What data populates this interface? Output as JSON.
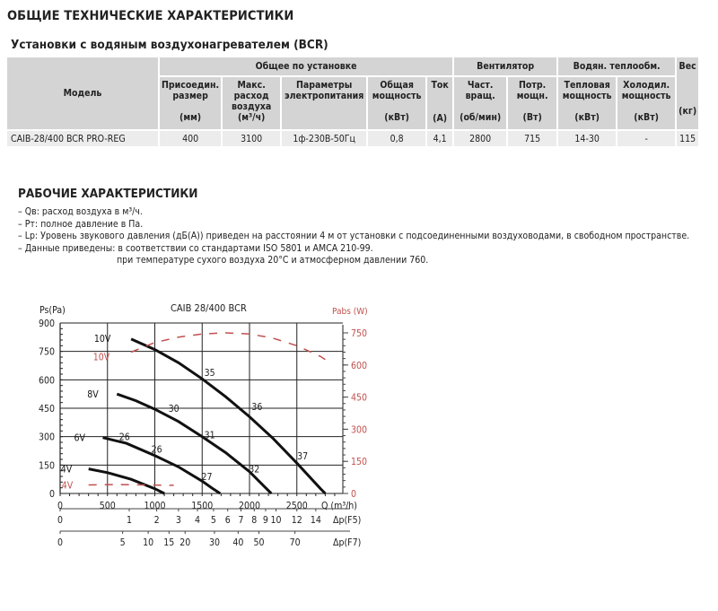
{
  "title": "ОБЩИЕ ТЕХНИЧЕСКИЕ ХАРАКТЕРИСТИКИ",
  "subtitle": "Установки с водяным воздухонагревателем (BCR)",
  "table": {
    "model_header": "Модель",
    "groups": {
      "general": "Общее по установке",
      "fan": "Вентилятор",
      "water": "Водян. теплообм.",
      "weight": "Вес"
    },
    "columns": [
      {
        "name": "Присоедин. размер",
        "unit": "(мм)"
      },
      {
        "name": "Макс. расход воздуха",
        "unit": "(м³/ч)"
      },
      {
        "name": "Параметры электропитания",
        "unit": ""
      },
      {
        "name": "Общая мощность",
        "unit": "(кВт)"
      },
      {
        "name": "Ток",
        "unit": "(А)"
      },
      {
        "name": "Част. вращ.",
        "unit": "(об/мин)"
      },
      {
        "name": "Потр. мощн.",
        "unit": "(Вт)"
      },
      {
        "name": "Тепловая мощность",
        "unit": "(кВт)"
      },
      {
        "name": "Холодил. мощность",
        "unit": "(кВт)"
      },
      {
        "name": "",
        "unit": "(кг)"
      }
    ],
    "row": {
      "model": "CAIB-28/400 BCR PRO-REG",
      "values": [
        "400",
        "3100",
        "1ф-230В-50Гц",
        "0,8",
        "4,1",
        "2800",
        "715",
        "14-30",
        "-",
        "115"
      ]
    }
  },
  "perf_title": "РАБОЧИЕ ХАРАКТЕРИСТИКИ",
  "notes": [
    "– Qв: расход воздуха в м³/ч.",
    "– Pт: полное давление в Па.",
    "– Lp: Уровень звукового давления (дБ(А)) приведен на расстоянии 4 м от установки с подсоединенными воздуховодами, в свободном пространстве.",
    "– Данные приведены:  в соответствии со стандартами ISO 5801 и AMCA 210-99.",
    "при температуре сухого воздуха 20°С и атмосферном давлении 760."
  ],
  "chart_data": {
    "type": "line",
    "title": "CAIB 28/400 BCR",
    "xlabel": "Q (m³/h)",
    "ylabel": "Ps(Pa)",
    "y2label": "Pabs (W)",
    "xlim": [
      0,
      3000
    ],
    "ylim": [
      0,
      900
    ],
    "y2lim": [
      0,
      800
    ],
    "grid": true,
    "x_ticks": [
      0,
      500,
      1000,
      1500,
      2000,
      2500
    ],
    "y_ticks": [
      0,
      150,
      300,
      450,
      600,
      750,
      900
    ],
    "y2_ticks": [
      0,
      150,
      300,
      450,
      600,
      750
    ],
    "series": [
      {
        "name": "10V",
        "axis": "left",
        "style": "solid",
        "color": "#111111",
        "x": [
          750,
          1000,
          1250,
          1500,
          1750,
          2000,
          2250,
          2500,
          2750,
          2800
        ],
        "y": [
          815,
          760,
          690,
          605,
          510,
          405,
          290,
          160,
          25,
          0
        ]
      },
      {
        "name": "8V",
        "axis": "left",
        "style": "solid",
        "color": "#111111",
        "x": [
          600,
          800,
          1000,
          1250,
          1500,
          1750,
          2000,
          2150,
          2230
        ],
        "y": [
          525,
          490,
          445,
          380,
          300,
          215,
          115,
          40,
          0
        ]
      },
      {
        "name": "6V",
        "axis": "left",
        "style": "solid",
        "color": "#111111",
        "x": [
          450,
          700,
          1000,
          1250,
          1500,
          1600,
          1690
        ],
        "y": [
          295,
          265,
          200,
          140,
          65,
          30,
          0
        ]
      },
      {
        "name": "4V",
        "axis": "left",
        "style": "solid",
        "color": "#111111",
        "x": [
          300,
          500,
          750,
          1000,
          1100
        ],
        "y": [
          130,
          110,
          75,
          25,
          0
        ]
      },
      {
        "name": "10V Pabs",
        "axis": "right",
        "style": "dashed",
        "color": "#c0504d",
        "x": [
          750,
          1000,
          1250,
          1500,
          1750,
          2000,
          2250,
          2500,
          2750,
          2800
        ],
        "y": [
          660,
          705,
          730,
          745,
          750,
          745,
          725,
          690,
          640,
          625
        ]
      },
      {
        "name": "4V Pabs",
        "axis": "right",
        "style": "dashed",
        "color": "#c0504d",
        "x": [
          300,
          600,
          900,
          1200
        ],
        "y": [
          40,
          42,
          40,
          38
        ]
      }
    ],
    "annotations": {
      "sound_levels": [
        {
          "label": "35",
          "x": 1580,
          "y": 640
        },
        {
          "label": "36",
          "x": 2080,
          "y": 460
        },
        {
          "label": "37",
          "x": 2560,
          "y": 200
        },
        {
          "label": "30",
          "x": 1200,
          "y": 450
        },
        {
          "label": "31",
          "x": 1580,
          "y": 310
        },
        {
          "label": "32",
          "x": 2050,
          "y": 130
        },
        {
          "label": "26",
          "x": 680,
          "y": 300
        },
        {
          "label": "26",
          "x": 1020,
          "y": 235
        },
        {
          "label": "27",
          "x": 1550,
          "y": 90
        }
      ],
      "curve_labels": [
        {
          "label": "10V",
          "x": 560,
          "y": 820,
          "color": "#111111"
        },
        {
          "label": "8V",
          "x": 460,
          "y": 525,
          "color": "#111111"
        },
        {
          "label": "6V",
          "x": 320,
          "y": 295,
          "color": "#111111"
        },
        {
          "label": "4V",
          "x": 180,
          "y": 130,
          "color": "#111111"
        },
        {
          "label": "10V",
          "x": 550,
          "y": 640,
          "color": "#c0504d"
        },
        {
          "label": "4V",
          "x": 190,
          "y": 40,
          "color": "#c0504d"
        }
      ]
    },
    "secondary_x_axes": [
      {
        "label": "Δp(F5)",
        "ticks": [
          {
            "v": "0",
            "q": 0
          },
          {
            "v": "1",
            "q": 730
          },
          {
            "v": "2",
            "q": 1020
          },
          {
            "v": "3",
            "q": 1250
          },
          {
            "v": "4",
            "q": 1450
          },
          {
            "v": "5",
            "q": 1620
          },
          {
            "v": "6",
            "q": 1770
          },
          {
            "v": "7",
            "q": 1910
          },
          {
            "v": "8",
            "q": 2050
          },
          {
            "v": "9",
            "q": 2170
          },
          {
            "v": "10",
            "q": 2280
          },
          {
            "v": "12",
            "q": 2500
          },
          {
            "v": "14",
            "q": 2700
          }
        ]
      },
      {
        "label": "Δp(F7)",
        "ticks": [
          {
            "v": "0",
            "q": 0
          },
          {
            "v": "5",
            "q": 660
          },
          {
            "v": "10",
            "q": 930
          },
          {
            "v": "15",
            "q": 1150
          },
          {
            "v": "20",
            "q": 1320
          },
          {
            "v": "30",
            "q": 1630
          },
          {
            "v": "40",
            "q": 1880
          },
          {
            "v": "50",
            "q": 2100
          },
          {
            "v": "70",
            "q": 2480
          }
        ]
      }
    ]
  }
}
